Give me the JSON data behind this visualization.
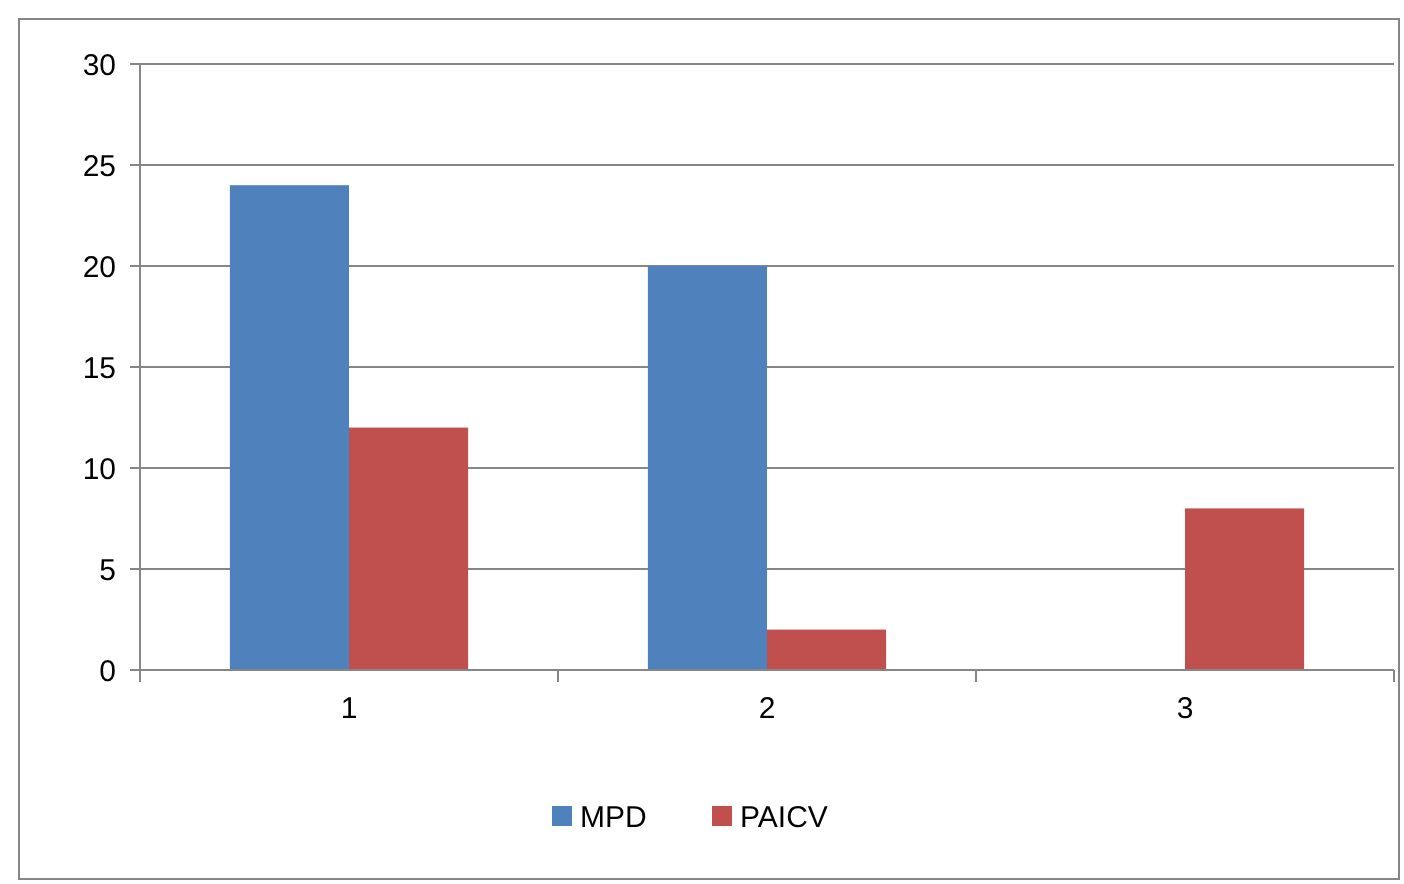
{
  "chart_data": {
    "type": "bar",
    "categories": [
      "1",
      "2",
      "3"
    ],
    "series": [
      {
        "name": "MPD",
        "color": "#4f81bd",
        "values": [
          24,
          20,
          0
        ]
      },
      {
        "name": "PAICV",
        "color": "#c0504d",
        "values": [
          12,
          2,
          8
        ]
      }
    ],
    "ylim": [
      0,
      30
    ],
    "yticks": [
      0,
      5,
      10,
      15,
      20,
      25,
      30
    ],
    "grid": "y",
    "legend": "bottom"
  }
}
